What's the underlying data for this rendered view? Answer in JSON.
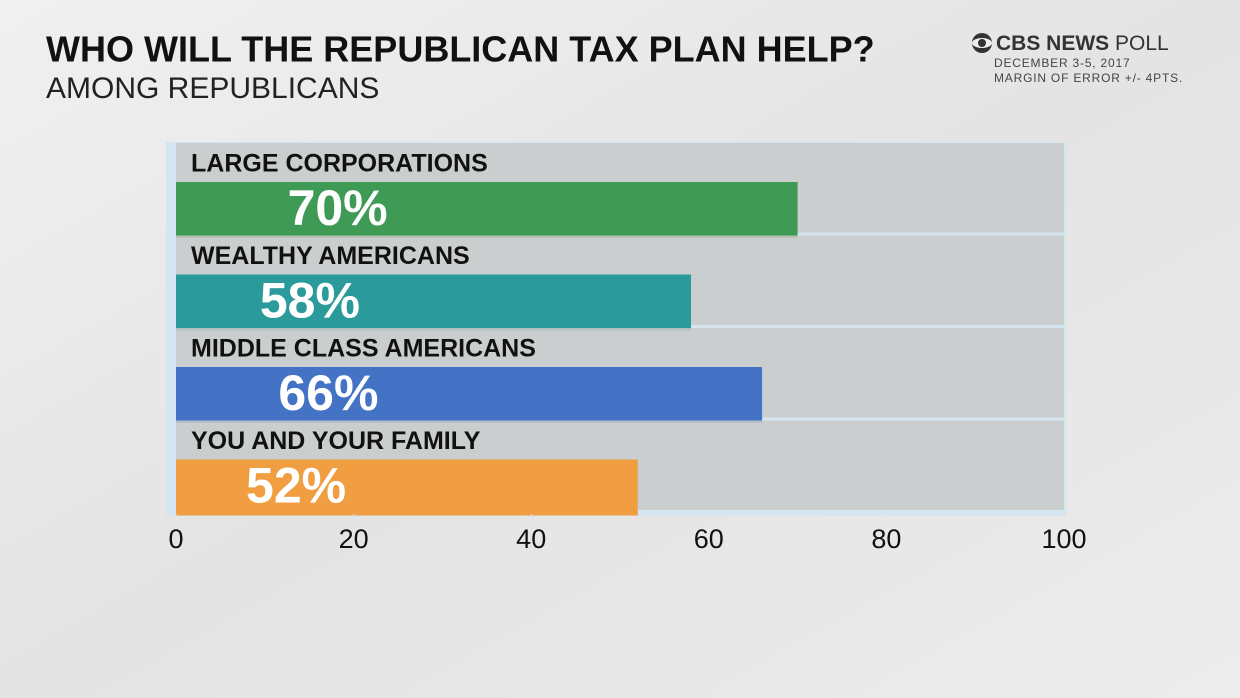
{
  "chart_data": {
    "type": "bar",
    "orientation": "horizontal",
    "title": "WHO WILL THE REPUBLICAN TAX PLAN HELP?",
    "subtitle": "AMONG REPUBLICANS",
    "source": {
      "logo": "CBS NEWS",
      "logo_suffix": "POLL",
      "date": "DECEMBER 3-5, 2017",
      "note": "MARGIN OF ERROR +/- 4PTS."
    },
    "categories": [
      "LARGE CORPORATIONS",
      "WEALTHY AMERICANS",
      "MIDDLE CLASS AMERICANS",
      "YOU AND YOUR FAMILY"
    ],
    "values": [
      70,
      58,
      66,
      52
    ],
    "value_labels": [
      "70%",
      "58%",
      "66%",
      "52%"
    ],
    "colors": [
      "#3f9a56",
      "#2b9a9b",
      "#4472c4",
      "#f19e42"
    ],
    "xlim": [
      0,
      100
    ],
    "xticks": [
      0,
      20,
      40,
      60,
      80,
      100
    ]
  }
}
